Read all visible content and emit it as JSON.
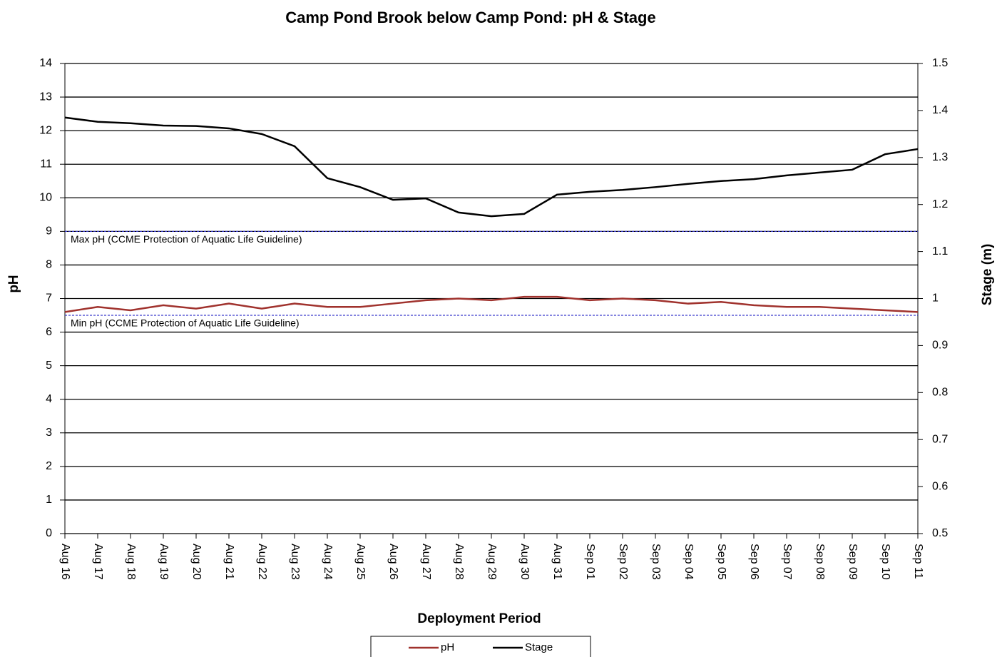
{
  "chart_data": {
    "type": "line",
    "title": "Camp Pond Brook below Camp Pond: pH & Stage",
    "x_label": "Deployment Period",
    "y_label": "pH",
    "y2_label": "Stage (m)",
    "x": [
      "Aug 16",
      "Aug 17",
      "Aug 18",
      "Aug 19",
      "Aug 20",
      "Aug 21",
      "Aug 22",
      "Aug 23",
      "Aug 24",
      "Aug 25",
      "Aug 26",
      "Aug 27",
      "Aug 28",
      "Aug 29",
      "Aug 30",
      "Aug 31",
      "Sep 01",
      "Sep 02",
      "Sep 03",
      "Sep 04",
      "Sep 05",
      "Sep 06",
      "Sep 07",
      "Sep 08",
      "Sep 09",
      "Sep 10",
      "Sep 11"
    ],
    "series": [
      {
        "name": "pH",
        "color": "#a0322d",
        "axis": "y",
        "values": [
          6.6,
          6.75,
          6.65,
          6.8,
          6.7,
          6.85,
          6.7,
          6.85,
          6.75,
          6.75,
          6.85,
          6.95,
          7.0,
          6.95,
          7.05,
          7.05,
          6.95,
          7.0,
          6.95,
          6.85,
          6.9,
          6.8,
          6.75,
          6.75,
          6.7,
          6.65,
          6.6
        ]
      },
      {
        "name": "Stage",
        "color": "#000000",
        "axis": "y2",
        "values": [
          1.385,
          1.376,
          1.373,
          1.368,
          1.367,
          1.362,
          1.35,
          1.324,
          1.256,
          1.237,
          1.21,
          1.213,
          1.183,
          1.175,
          1.18,
          1.221,
          1.227,
          1.231,
          1.237,
          1.244,
          1.25,
          1.254,
          1.262,
          1.268,
          1.274,
          1.307,
          1.318
        ]
      }
    ],
    "guidelines": [
      {
        "value": 9,
        "label": "Max pH  (CCME  Protection of Aquatic Life Guideline)",
        "color": "#3b3bcc"
      },
      {
        "value": 6.5,
        "label": "Min pH  (CCME  Protection of Aquatic Life Guideline)",
        "color": "#3b3bcc"
      }
    ],
    "ylim": [
      0,
      14
    ],
    "yticks": [
      0,
      1,
      2,
      3,
      4,
      5,
      6,
      7,
      8,
      9,
      10,
      11,
      12,
      13,
      14
    ],
    "y2lim": [
      0.5,
      1.5
    ],
    "y2ticks": [
      0.5,
      0.6,
      0.7,
      0.8,
      0.9,
      1,
      1.1,
      1.2,
      1.3,
      1.4,
      1.5
    ],
    "grid": true,
    "legend": "bottom"
  }
}
